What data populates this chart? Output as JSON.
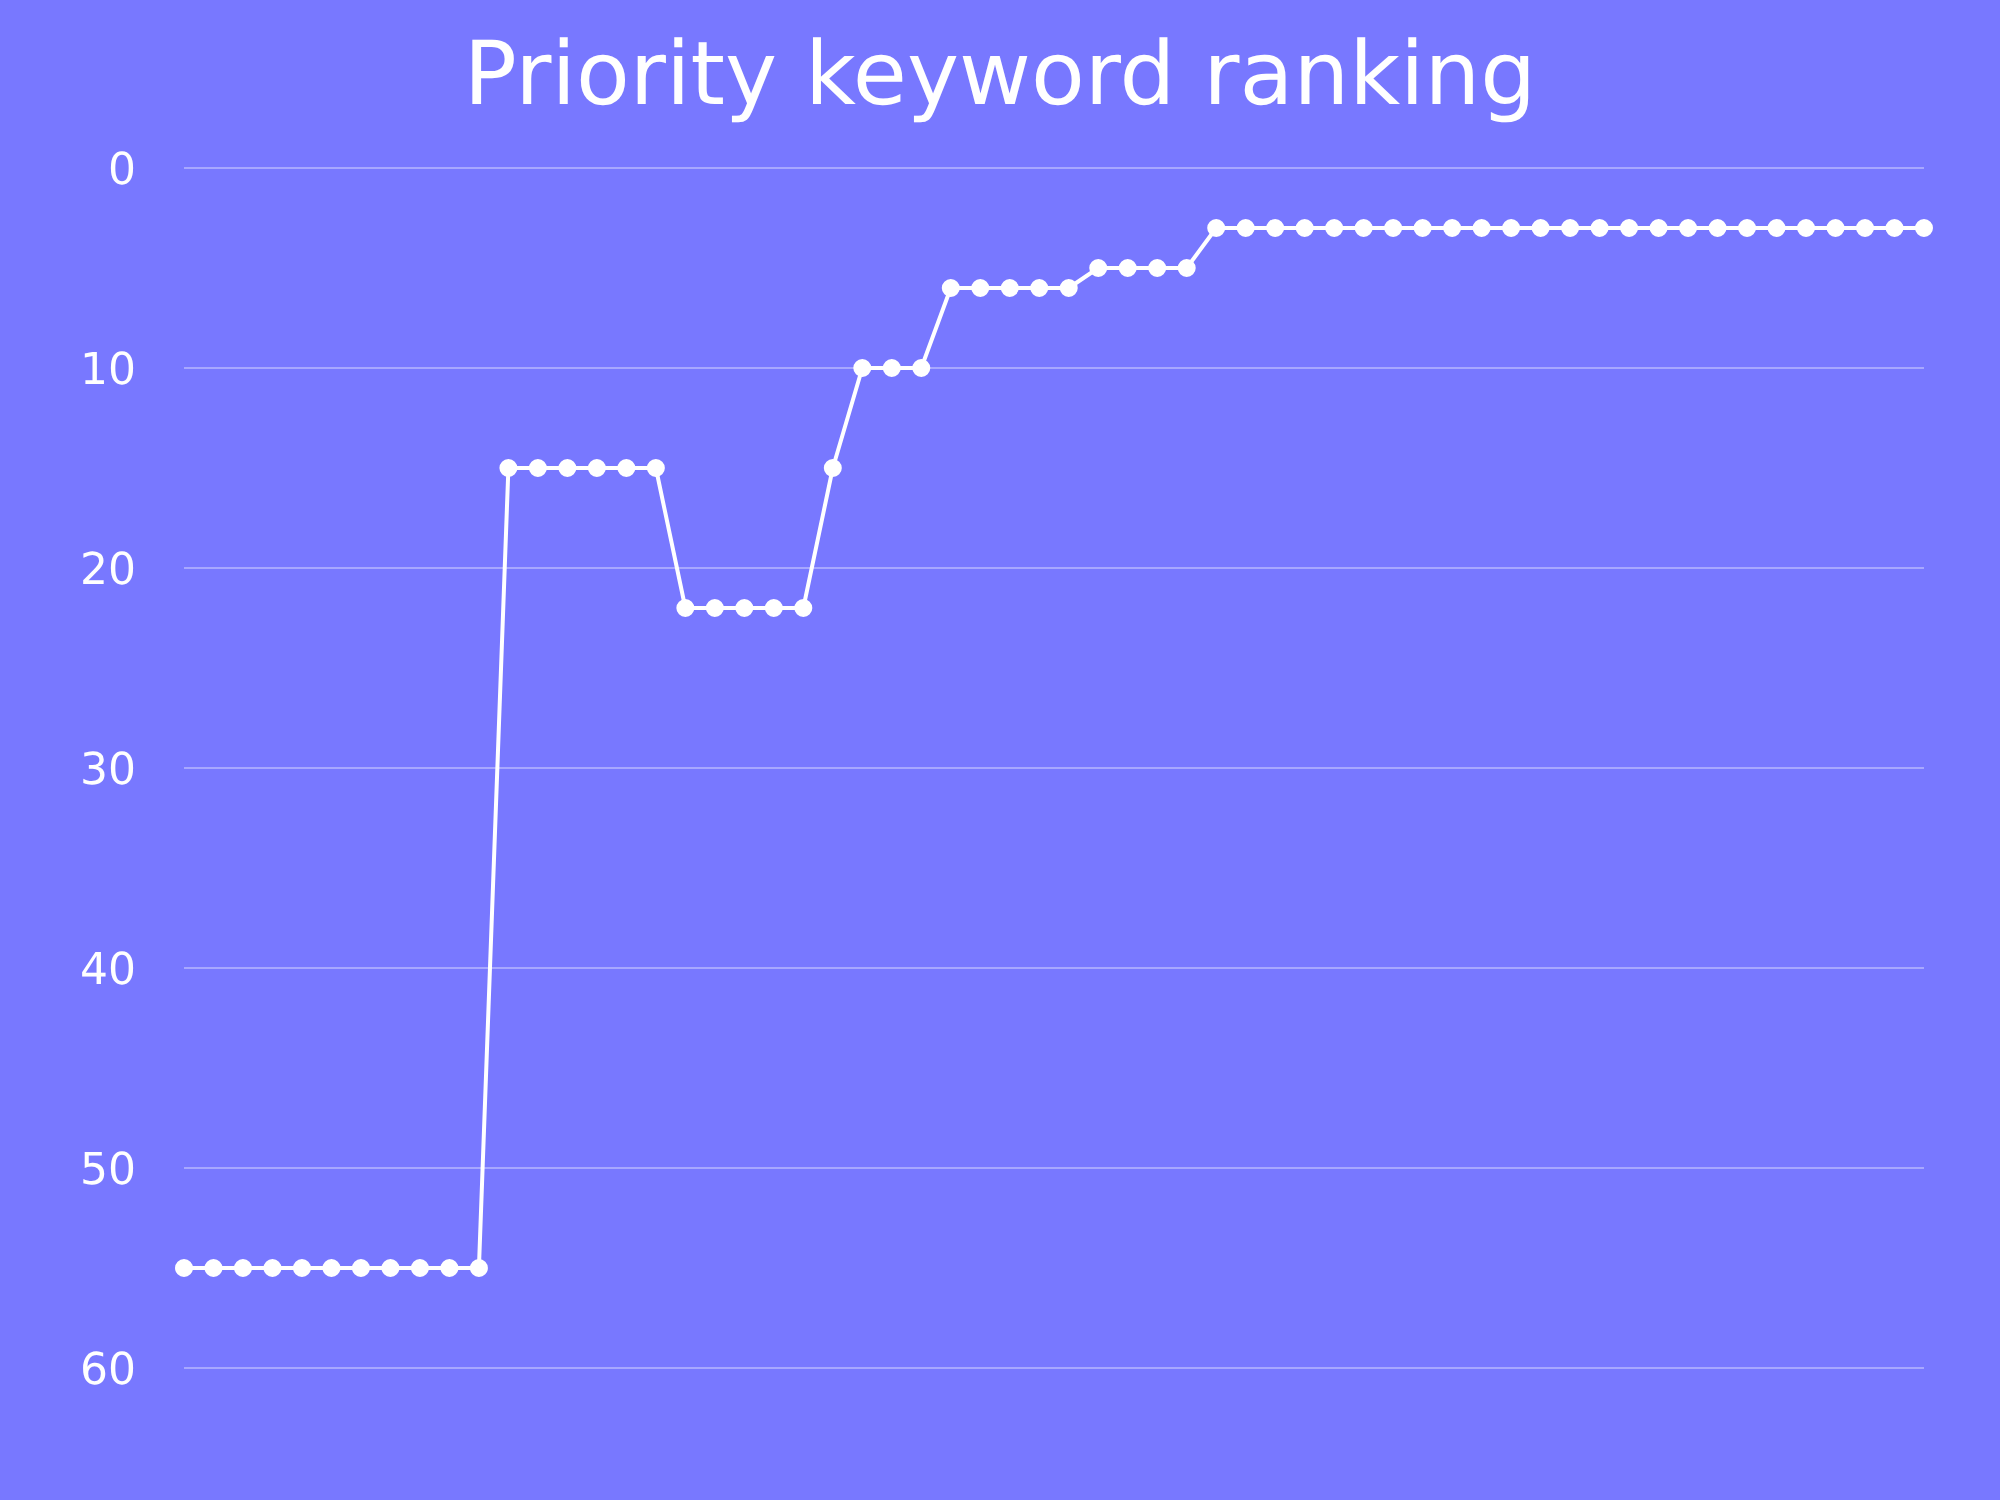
{
  "chart_data": {
    "type": "line",
    "title": "Priority keyword ranking",
    "categories": [
      null,
      null,
      null,
      null,
      null,
      null,
      null,
      null,
      null,
      null,
      null,
      null,
      null,
      null,
      null,
      null,
      null,
      null,
      null,
      null,
      null,
      null,
      null,
      null,
      null,
      null,
      null,
      null,
      null,
      null,
      null,
      null,
      null,
      null,
      null,
      null,
      null,
      null,
      null,
      null,
      null,
      null,
      null,
      null,
      null,
      null,
      null,
      null,
      null,
      null,
      null,
      null,
      null,
      null,
      null,
      null,
      null,
      null,
      null,
      null
    ],
    "series": [
      {
        "color": "#ffffff",
        "values": [
          55,
          55,
          55,
          55,
          55,
          55,
          55,
          55,
          55,
          55,
          55,
          15,
          15,
          15,
          15,
          15,
          15,
          22,
          22,
          22,
          22,
          22,
          15,
          10,
          10,
          10,
          6,
          6,
          6,
          6,
          6,
          5,
          5,
          5,
          5,
          3,
          3,
          3,
          3,
          3,
          3,
          3,
          3,
          3,
          3,
          3,
          3,
          3,
          3,
          3,
          3,
          3,
          3,
          3,
          3,
          3,
          3,
          3,
          3,
          3
        ]
      }
    ],
    "ylim": [
      60,
      0
    ],
    "yticks": [
      0,
      10,
      20,
      30,
      40,
      50,
      60
    ],
    "grid": "y",
    "marker": "circle",
    "line_style": "solid"
  }
}
